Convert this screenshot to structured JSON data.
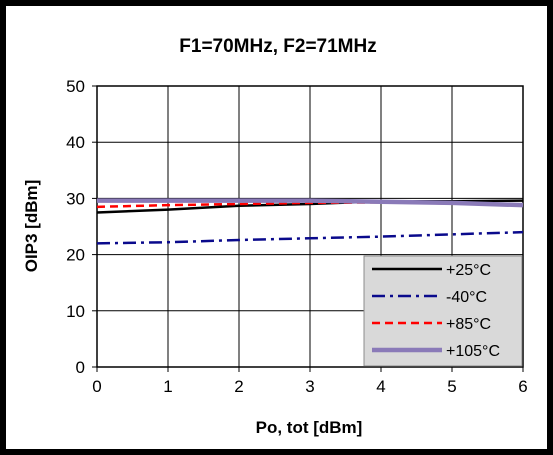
{
  "chart_data": {
    "type": "line",
    "title": "F1=70MHz, F2=71MHz",
    "xlabel": "Po, tot [dBm]",
    "ylabel": "OIP3 [dBm]",
    "xlim": [
      0,
      6
    ],
    "ylim": [
      0,
      50
    ],
    "xticks": [
      0,
      1,
      2,
      3,
      4,
      5,
      6
    ],
    "yticks": [
      0,
      10,
      20,
      30,
      40,
      50
    ],
    "grid": true,
    "legend_position": "bottom-right",
    "series": [
      {
        "name": "+25°C",
        "color": "#000000",
        "dash": "solid",
        "x": [
          0,
          1,
          2,
          3,
          4,
          5,
          6
        ],
        "y": [
          27.5,
          28.0,
          28.7,
          29.0,
          29.5,
          29.5,
          29.6
        ]
      },
      {
        "name": "-40°C",
        "color": "#0a0a8c",
        "dash": "dashdot",
        "x": [
          0,
          1,
          2,
          3,
          4,
          5,
          6
        ],
        "y": [
          22.0,
          22.2,
          22.6,
          22.9,
          23.2,
          23.6,
          24.0
        ]
      },
      {
        "name": "+85°C",
        "color": "#ff0000",
        "dash": "dashed",
        "x": [
          0,
          1,
          2,
          3,
          4,
          5,
          6
        ],
        "y": [
          28.5,
          28.8,
          29.0,
          29.2,
          29.3,
          29.1,
          28.9
        ]
      },
      {
        "name": "+105°C",
        "color": "#8a7ab8",
        "dash": "solid",
        "x": [
          0,
          1,
          2,
          3,
          4,
          5,
          6
        ],
        "y": [
          29.6,
          29.6,
          29.6,
          29.6,
          29.4,
          29.2,
          28.8
        ]
      }
    ]
  }
}
